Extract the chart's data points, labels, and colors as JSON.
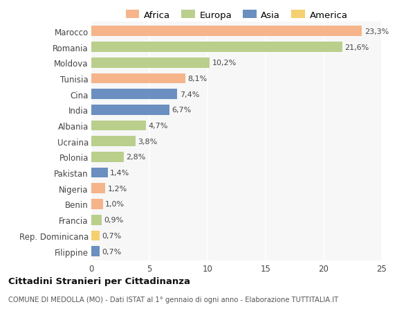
{
  "categories": [
    "Marocco",
    "Romania",
    "Moldova",
    "Tunisia",
    "Cina",
    "India",
    "Albania",
    "Ucraina",
    "Polonia",
    "Pakistan",
    "Nigeria",
    "Benin",
    "Francia",
    "Rep. Dominicana",
    "Filippine"
  ],
  "values": [
    23.3,
    21.6,
    10.2,
    8.1,
    7.4,
    6.7,
    4.7,
    3.8,
    2.8,
    1.4,
    1.2,
    1.0,
    0.9,
    0.7,
    0.7
  ],
  "labels": [
    "23,3%",
    "21,6%",
    "10,2%",
    "8,1%",
    "7,4%",
    "6,7%",
    "4,7%",
    "3,8%",
    "2,8%",
    "1,4%",
    "1,2%",
    "1,0%",
    "0,9%",
    "0,7%",
    "0,7%"
  ],
  "continents": [
    "Africa",
    "Europa",
    "Europa",
    "Africa",
    "Asia",
    "Asia",
    "Europa",
    "Europa",
    "Europa",
    "Asia",
    "Africa",
    "Africa",
    "Europa",
    "America",
    "Asia"
  ],
  "colors": {
    "Africa": "#F5B48A",
    "Europa": "#BACF8C",
    "Asia": "#6B8FC0",
    "America": "#F5D070"
  },
  "legend_order": [
    "Africa",
    "Europa",
    "Asia",
    "America"
  ],
  "xlim": [
    0,
    25
  ],
  "xticks": [
    0,
    5,
    10,
    15,
    20,
    25
  ],
  "title": "Cittadini Stranieri per Cittadinanza",
  "subtitle": "COMUNE DI MEDOLLA (MO) - Dati ISTAT al 1° gennaio di ogni anno - Elaborazione TUTTITALIA.IT",
  "background_color": "#ffffff",
  "plot_bg_color": "#f7f7f7"
}
